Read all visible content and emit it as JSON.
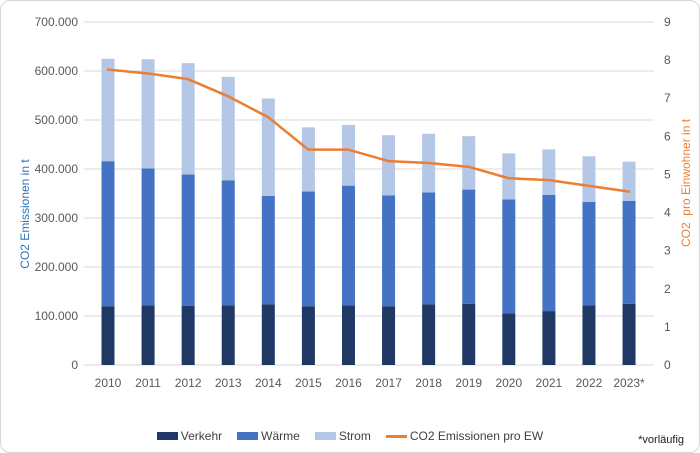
{
  "footnote": "*vorläufig",
  "chart_data": {
    "type": "combo: stacked-bar + line",
    "title": "",
    "grid": true,
    "legend_position": "bottom",
    "categories": [
      "2010",
      "2011",
      "2012",
      "2013",
      "2014",
      "2015",
      "2016",
      "2017",
      "2018",
      "2019",
      "2020",
      "2021",
      "2022",
      "2023*"
    ],
    "series": [
      {
        "key": "verkehr",
        "name": "Verkehr",
        "type": "bar",
        "axis": "left",
        "color": "#1f3864",
        "values": [
          120000,
          122000,
          121000,
          122000,
          124000,
          120000,
          122000,
          120000,
          124000,
          125000,
          105000,
          110000,
          122000,
          125000
        ]
      },
      {
        "key": "waerme",
        "name": "Wärme",
        "type": "bar",
        "axis": "left",
        "color": "#4472c4",
        "values": [
          296000,
          279000,
          268000,
          255000,
          221000,
          234000,
          244000,
          226000,
          228000,
          233000,
          233000,
          237000,
          211000,
          210000
        ]
      },
      {
        "key": "strom",
        "name": "Strom",
        "type": "bar",
        "axis": "left",
        "color": "#b4c7e7",
        "values": [
          209000,
          223000,
          227000,
          211000,
          199000,
          131000,
          124000,
          123000,
          120000,
          109000,
          94000,
          93000,
          93000,
          80000
        ]
      },
      {
        "key": "co2-pro-ew",
        "name": "CO2 Emissionen pro EW",
        "type": "line",
        "axis": "right",
        "color": "#ed7d31",
        "values": [
          7.75,
          7.65,
          7.5,
          7.05,
          6.5,
          5.65,
          5.65,
          5.35,
          5.3,
          5.2,
          4.9,
          4.85,
          4.7,
          4.55
        ]
      }
    ],
    "stacked_totals": [
      625000,
      624000,
      616000,
      588000,
      544000,
      485000,
      490000,
      469000,
      472000,
      467000,
      432000,
      440000,
      426000,
      415000
    ],
    "left_axis": {
      "title": "CO2 Emissionen in t",
      "min": 0,
      "max": 700000,
      "step": 100000,
      "tick_labels": [
        "700.000",
        "600.000",
        "500.000",
        "400.000",
        "300.000",
        "200.000",
        "100.000",
        "0"
      ]
    },
    "right_axis": {
      "title": "CO2  pro Einwohner in t",
      "min": 0,
      "max": 9,
      "step": 1,
      "tick_labels": [
        "9",
        "8",
        "7",
        "6",
        "5",
        "4",
        "3",
        "2",
        "1",
        "0"
      ]
    },
    "colors": {
      "gridline": "#d9d9d9",
      "tick_text": "#595959",
      "legend_text": "#404040",
      "left_title": "#2e75b6",
      "right_title": "#ed7d31"
    }
  }
}
